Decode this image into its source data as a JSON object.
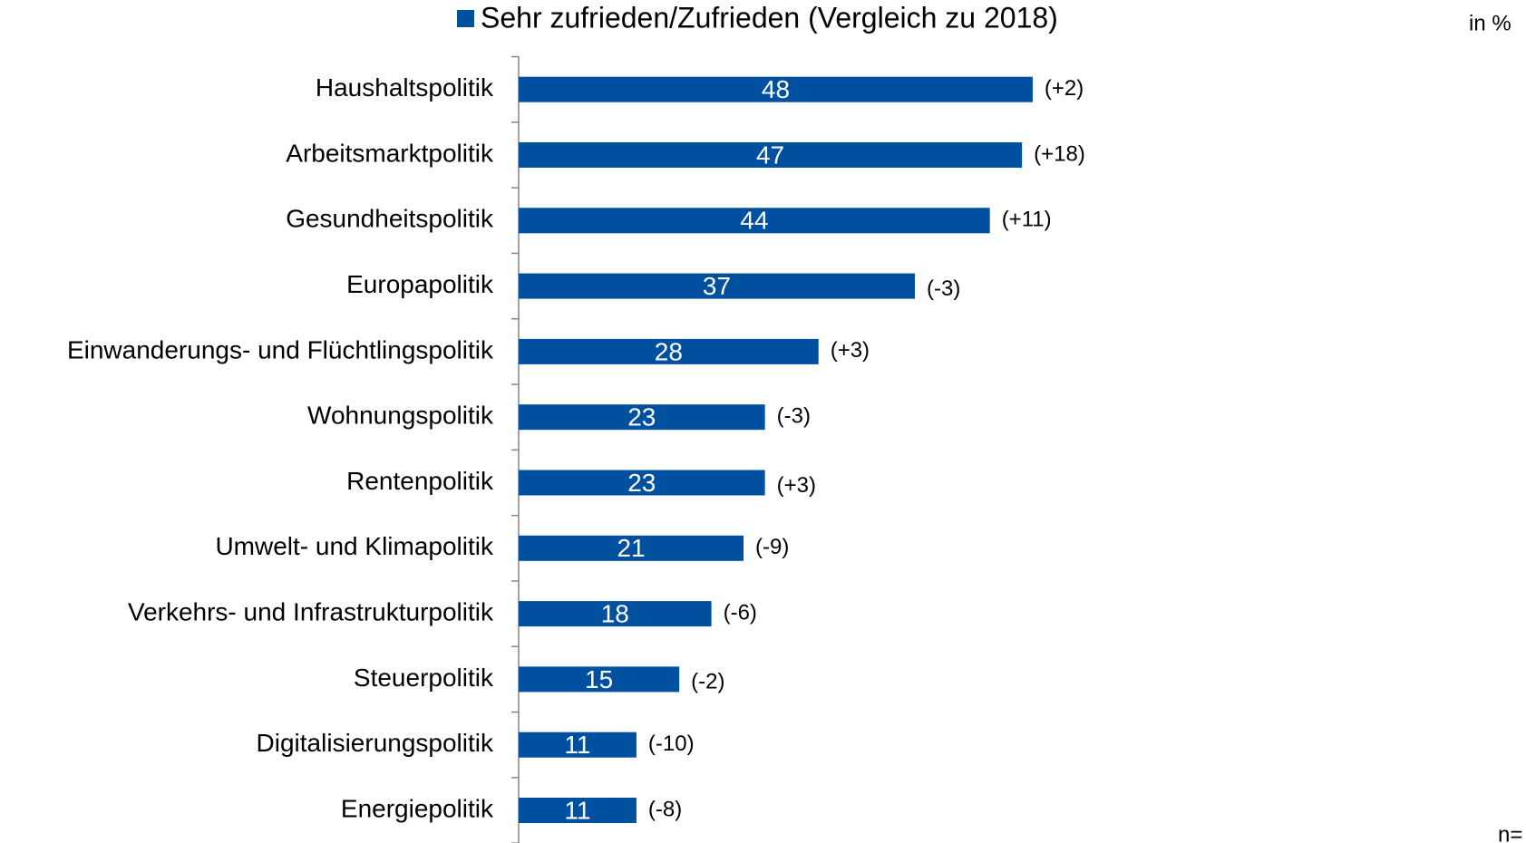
{
  "chart_data": {
    "type": "bar",
    "orientation": "horizontal",
    "categories": [
      "Haushaltspolitik",
      "Arbeitsmarktpolitik",
      "Gesundheitspolitik",
      "Europapolitik",
      "Einwanderungs- und Flüchtlingspolitik",
      "Wohnungspolitik",
      "Rentenpolitik",
      "Umwelt- und Klimapolitik",
      "Verkehrs- und Infrastrukturpolitik",
      "Steuerpolitik",
      "Digitalisierungspolitik",
      "Energiepolitik"
    ],
    "series": [
      {
        "name": "Sehr zufrieden/Zufrieden (Vergleich zu 2018)",
        "color": "#0050a0",
        "values": [
          48,
          47,
          44,
          37,
          28,
          23,
          23,
          21,
          18,
          15,
          11,
          11
        ]
      }
    ],
    "annotations": [
      "(+2)",
      "(+18)",
      "(+11)",
      "(-3)",
      "(+3)",
      "(-3)",
      "(+3)",
      "(-9)",
      "(-6)",
      "(-2)",
      "(-10)",
      "(-8)"
    ],
    "unit_note": "in %",
    "footnote": "n=",
    "xlim": [
      0,
      90
    ]
  }
}
